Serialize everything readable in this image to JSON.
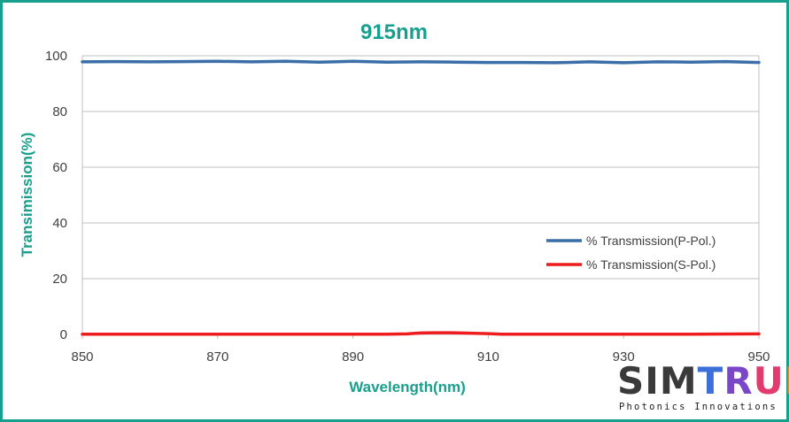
{
  "chart_data": {
    "type": "line",
    "title": "915nm",
    "xlabel": "Wavelength(nm)",
    "ylabel": "Transimission(%)",
    "xlim": [
      850,
      950
    ],
    "ylim": [
      0,
      100
    ],
    "x_ticks": [
      "850",
      "870",
      "890",
      "910",
      "930",
      "950"
    ],
    "y_ticks": [
      "0",
      "20",
      "40",
      "60",
      "80",
      "100"
    ],
    "grid": "horizontal",
    "legend_position": "right",
    "series": [
      {
        "name": "% Transmission(P-Pol.)",
        "color": "#3a6ea8",
        "x": [
          850,
          855,
          860,
          865,
          870,
          875,
          880,
          885,
          890,
          895,
          900,
          905,
          910,
          915,
          920,
          925,
          930,
          935,
          940,
          945,
          950
        ],
        "values": [
          97.8,
          97.9,
          97.8,
          97.9,
          98.0,
          97.8,
          98.0,
          97.7,
          98.0,
          97.7,
          97.8,
          97.7,
          97.6,
          97.6,
          97.5,
          97.8,
          97.5,
          97.8,
          97.7,
          97.9,
          97.6
        ]
      },
      {
        "name": "% Transmission(S-Pol.)",
        "color": "#ee1c1c",
        "x": [
          850,
          860,
          870,
          880,
          890,
          895,
          898,
          900,
          902,
          904,
          906,
          908,
          910,
          912,
          915,
          920,
          930,
          940,
          950
        ],
        "values": [
          0.1,
          0.1,
          0.1,
          0.1,
          0.1,
          0.1,
          0.2,
          0.5,
          0.6,
          0.6,
          0.5,
          0.4,
          0.3,
          0.1,
          0.1,
          0.1,
          0.1,
          0.1,
          0.2
        ]
      }
    ]
  },
  "logo": {
    "part1": "SIM",
    "letter_t": "T",
    "letter_r": "R",
    "letter_u": "U",
    "letter_m": "M",
    "tagline": "Photonics Innovations"
  }
}
